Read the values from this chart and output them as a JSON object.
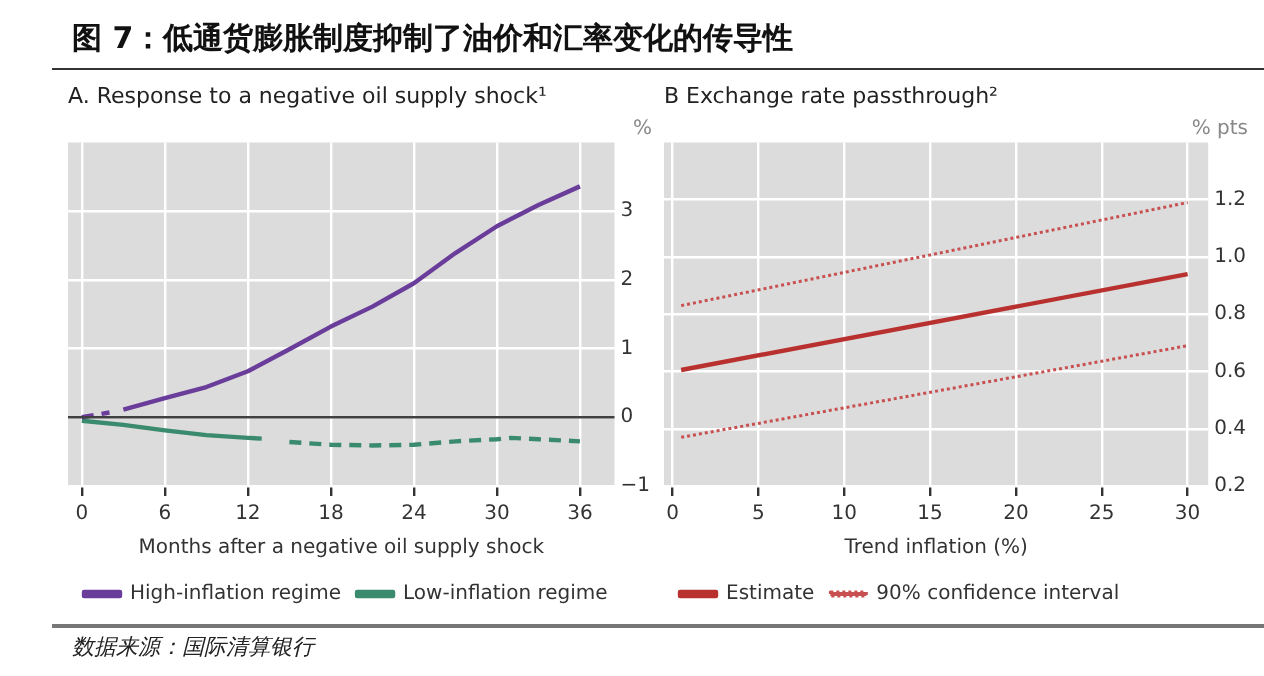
{
  "chart_data": [
    {
      "type": "line",
      "title": "A. Response to a negative oil supply shock¹",
      "xlabel": "Months after a negative oil supply shock",
      "ylabel": "%",
      "annotations": [
        "图 7：低通货膨胀制度抑制了油价和汇率变化的传导性"
      ],
      "xlim": [
        -1,
        38.5
      ],
      "xticks": [
        0,
        6,
        12,
        18,
        24,
        30,
        36
      ],
      "ylim": [
        -1,
        4
      ],
      "yticks": [
        {
          "value": -1,
          "label": "−1"
        },
        0,
        1,
        2,
        3
      ],
      "grid": true,
      "legend": "bottom",
      "marker": "none",
      "ref_lines": [
        {
          "axis": "y",
          "value": 0,
          "color": "#404040"
        }
      ],
      "series": [
        {
          "name": "High-inflation regime",
          "color": "#6a3d9a",
          "line_style": "solid",
          "x": [
            3,
            6,
            9,
            12,
            15,
            18,
            21,
            24,
            27,
            30,
            33,
            36
          ],
          "values": [
            0.11,
            0.28,
            0.44,
            0.67,
            0.99,
            1.32,
            1.61,
            1.95,
            2.39,
            2.78,
            3.09,
            3.36
          ]
        },
        {
          "color": "#6a3d9a",
          "line_style": "dashed",
          "x": [
            0,
            2
          ],
          "values": [
            0,
            0.07
          ]
        },
        {
          "name": "Low-inflation regime",
          "color": "#3a8a6e",
          "line_style": "solid",
          "x": [
            0,
            3,
            6,
            9,
            12,
            13
          ],
          "values": [
            -0.05,
            -0.11,
            -0.19,
            -0.26,
            -0.3,
            -0.31
          ]
        },
        {
          "color": "#3a8a6e",
          "line_style": "dashed",
          "x": [
            15,
            18,
            21,
            24,
            27,
            30,
            31,
            33,
            36
          ],
          "values": [
            -0.36,
            -0.4,
            -0.41,
            -0.4,
            -0.35,
            -0.32,
            -0.3,
            -0.32,
            -0.35
          ]
        }
      ]
    },
    {
      "type": "line",
      "title": "B Exchange rate passthrough²",
      "xlabel": "Trend inflation (%)",
      "ylabel": "% pts",
      "annotations": [
        "数据来源：国际清算银行"
      ],
      "xlim": [
        -0.5,
        31.2
      ],
      "xticks": [
        0,
        5,
        10,
        15,
        20,
        25,
        30
      ],
      "ylim": [
        0.2,
        1.4
      ],
      "yticks": [
        0.2,
        0.4,
        0.6,
        0.8,
        {
          "value": 1,
          "label": "1.0"
        },
        1.2
      ],
      "grid": true,
      "legend": "bottom",
      "marker": "none",
      "series": [
        {
          "name": "Estimate",
          "color": "#b8312f",
          "line_style": "solid",
          "x": [
            0.5,
            30
          ],
          "values": [
            0.605,
            0.94
          ]
        },
        {
          "name": "90% confidence interval",
          "color": "#c85050",
          "line_style": "dotted",
          "x": [
            0.5,
            30
          ],
          "values": [
            0.83,
            1.19
          ]
        },
        {
          "color": "#c85050",
          "line_style": "dotted",
          "x": [
            0.5,
            30
          ],
          "values": [
            0.37,
            0.69
          ]
        }
      ]
    }
  ]
}
